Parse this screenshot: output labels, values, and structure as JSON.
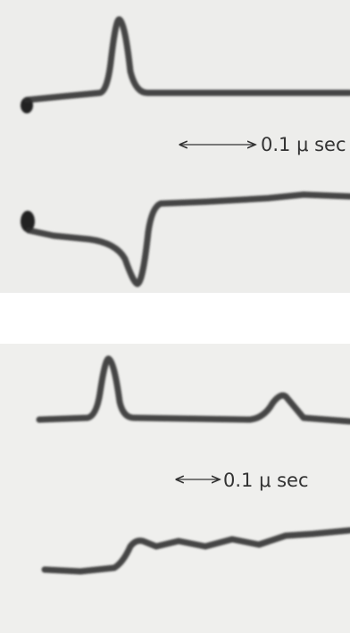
{
  "panels": [
    {
      "scale_label": "0.1 μ sec"
    },
    {
      "scale_label": "0.1 μ sec"
    }
  ]
}
